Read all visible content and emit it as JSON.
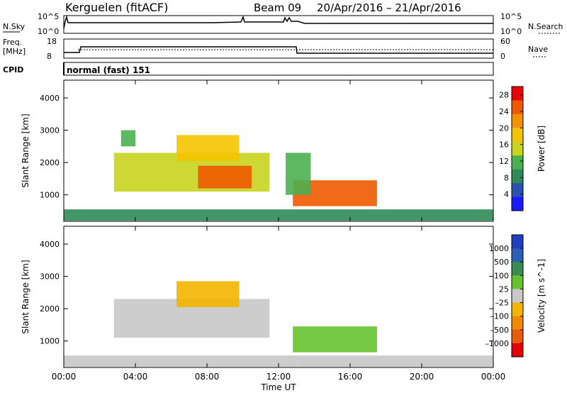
{
  "header": {
    "station": "Kerguelen (fitACF)",
    "beam": "Beam 09",
    "date_range": "20/Apr/2016 – 21/Apr/2016"
  },
  "nsky_panel": {
    "label": "N.Sky",
    "left_ticks": [
      "10^5",
      "10^0"
    ],
    "right_ticks": [
      "10^5",
      "10^0"
    ],
    "right_label": "N.Search"
  },
  "freq_panel": {
    "label_line1": "Freq.",
    "label_line2": "[MHz]",
    "left_ticks": [
      "18",
      "8"
    ],
    "right_ticks": [
      "60",
      "0"
    ],
    "right_label": "Nave"
  },
  "cpid_panel": {
    "label": "CPID",
    "text": "normal (fast) 151"
  },
  "colors": {
    "power_scale": [
      "#1a1aff",
      "#2952b3",
      "#2e8b57",
      "#4caf50",
      "#c8d41e",
      "#f5c400",
      "#f29200",
      "#ef5a00",
      "#e8000b"
    ],
    "velocity_scale": [
      "#1f3fbf",
      "#2d5fb8",
      "#3a8a52",
      "#66c22e",
      "#c8c8c8",
      "#f4b400",
      "#f08a00",
      "#ea5a0a",
      "#e3000b"
    ]
  },
  "chart_data": [
    {
      "type": "heatmap",
      "title": "",
      "xlabel": "",
      "ylabel": "Slant Range [km]",
      "x_range": [
        "00:00",
        "24:00"
      ],
      "ylim": [
        180,
        4550
      ],
      "yticks": [
        "1000",
        "2000",
        "3000",
        "4000"
      ],
      "colorbar": {
        "label": "Power [dB]",
        "ticks": [
          "4",
          "8",
          "12",
          "16",
          "20",
          "24",
          "28"
        ],
        "range": [
          0,
          30
        ]
      },
      "regions": [
        {
          "t_start": 2.8,
          "t_end": 11.5,
          "r_low": 1100,
          "r_high": 2300,
          "power_db": 16
        },
        {
          "t_start": 7.5,
          "t_end": 10.5,
          "r_low": 1200,
          "r_high": 1900,
          "power_db": 24
        },
        {
          "t_start": 12.8,
          "t_end": 17.5,
          "r_low": 650,
          "r_high": 1450,
          "power_db": 26
        },
        {
          "t_start": 12.4,
          "t_end": 13.8,
          "r_low": 1000,
          "r_high": 2300,
          "power_db": 12
        },
        {
          "t_start": 3.2,
          "t_end": 4.0,
          "r_low": 2500,
          "r_high": 3000,
          "power_db": 10
        },
        {
          "t_start": 6.3,
          "t_end": 9.8,
          "r_low": 2050,
          "r_high": 2850,
          "power_db": 18
        },
        {
          "t_start": 0.0,
          "t_end": 24.0,
          "r_low": 200,
          "r_high": 550,
          "power_db": 8
        }
      ]
    },
    {
      "type": "heatmap",
      "title": "",
      "xlabel": "Time UT",
      "ylabel": "Slant Range [km]",
      "x_range": [
        "00:00",
        "24:00"
      ],
      "xticks": [
        "00:00",
        "04:00",
        "08:00",
        "12:00",
        "16:00",
        "20:00",
        "00:00"
      ],
      "ylim": [
        180,
        4550
      ],
      "yticks": [
        "1000",
        "2000",
        "3000",
        "4000"
      ],
      "colorbar": {
        "label": "Velocity [m s^-1]",
        "ticks": [
          "1000",
          "500",
          "100",
          "25",
          "–25",
          "–100",
          "–500",
          "–1000"
        ],
        "range": [
          -1200,
          1200
        ]
      },
      "regions": [
        {
          "t_start": 2.8,
          "t_end": 11.5,
          "r_low": 1100,
          "r_high": 2300,
          "velocity": 0
        },
        {
          "t_start": 12.8,
          "t_end": 17.5,
          "r_low": 650,
          "r_high": 1450,
          "velocity": 150
        },
        {
          "t_start": 6.3,
          "t_end": 9.8,
          "r_low": 2050,
          "r_high": 2850,
          "velocity": -300
        },
        {
          "t_start": 0.0,
          "t_end": 13.0,
          "r_low": 200,
          "r_high": 550,
          "velocity": -60
        },
        {
          "t_start": 13.0,
          "t_end": 24.0,
          "r_low": 200,
          "r_high": 550,
          "velocity": 60
        }
      ]
    }
  ]
}
